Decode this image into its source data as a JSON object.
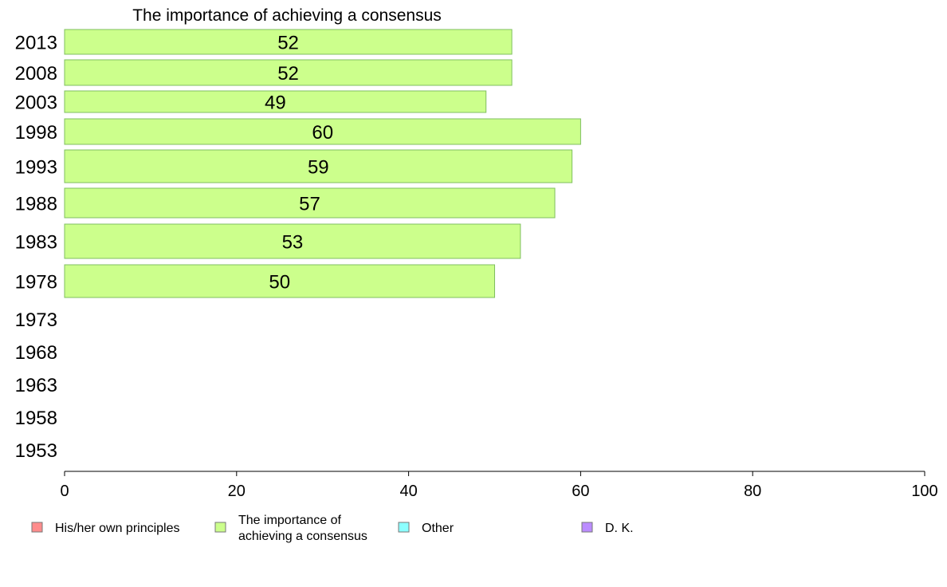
{
  "chart_data": {
    "type": "bar",
    "orientation": "horizontal",
    "title": "The importance of achieving a consensus",
    "categories": [
      "2013",
      "2008",
      "2003",
      "1998",
      "1993",
      "1988",
      "1983",
      "1978",
      "1973",
      "1968",
      "1963",
      "1958",
      "1953"
    ],
    "series": [
      {
        "name": "His/her own principles",
        "color": "#ff8c8c",
        "values": [
          null,
          null,
          null,
          null,
          null,
          null,
          null,
          null,
          null,
          null,
          null,
          null,
          null
        ]
      },
      {
        "name": "The importance of achieving a consensus",
        "color": "#ccff8c",
        "values": [
          52,
          52,
          49,
          60,
          59,
          57,
          53,
          50,
          null,
          null,
          null,
          null,
          null
        ]
      },
      {
        "name": "Other",
        "color": "#8cffff",
        "values": [
          null,
          null,
          null,
          null,
          null,
          null,
          null,
          null,
          null,
          null,
          null,
          null,
          null
        ]
      },
      {
        "name": "D. K.",
        "color": "#bb8cff",
        "values": [
          null,
          null,
          null,
          null,
          null,
          null,
          null,
          null,
          null,
          null,
          null,
          null,
          null
        ]
      }
    ],
    "shown_series": 1,
    "data_labels": [
      "52",
      "52",
      "49",
      "60",
      "59",
      "57",
      "53",
      "50"
    ],
    "xlim": [
      0,
      100
    ],
    "xticks": [
      "0",
      "20",
      "40",
      "60",
      "80",
      "100"
    ],
    "grid": false,
    "legend_position": "bottom",
    "legend": [
      {
        "lines": [
          "His/her own principles"
        ],
        "color": "#ff8c8c"
      },
      {
        "lines": [
          "The importance of",
          "achieving a consensus"
        ],
        "color": "#ccff8c"
      },
      {
        "lines": [
          "Other"
        ],
        "color": "#8cffff"
      },
      {
        "lines": [
          "D. K."
        ],
        "color": "#bb8cff"
      }
    ],
    "bar_border_color": "#7fbf5f"
  }
}
